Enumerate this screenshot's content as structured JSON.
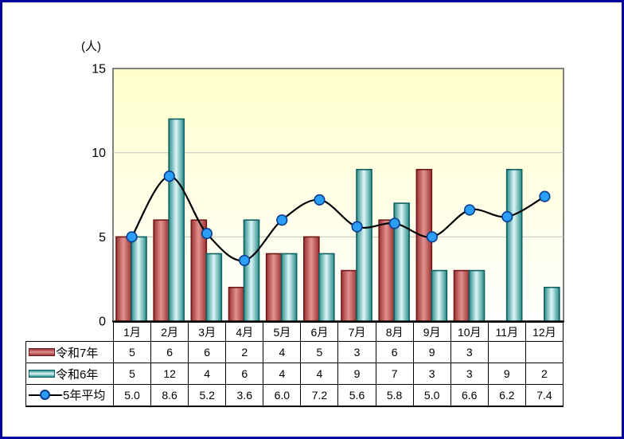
{
  "window": {
    "background": "#FFFFFF",
    "border_color": "#0000A0"
  },
  "chart_data": {
    "type": "bar+line",
    "title": "",
    "unit_label": "(人)",
    "categories": [
      "1月",
      "2月",
      "3月",
      "4月",
      "5月",
      "6月",
      "7月",
      "8月",
      "9月",
      "10月",
      "11月",
      "12月"
    ],
    "series": [
      {
        "name": "令和7年",
        "type": "bar",
        "values": [
          5,
          6,
          6,
          2,
          4,
          5,
          3,
          6,
          9,
          3,
          null,
          null
        ]
      },
      {
        "name": "令和6年",
        "type": "bar",
        "values": [
          5,
          12,
          4,
          6,
          4,
          4,
          9,
          7,
          3,
          3,
          9,
          2
        ]
      },
      {
        "name": "5年平均",
        "type": "line",
        "decimals": 1,
        "values": [
          5.0,
          8.6,
          5.2,
          3.6,
          6.0,
          7.2,
          5.6,
          5.8,
          5.0,
          6.6,
          6.2,
          7.4
        ]
      }
    ],
    "ylim": [
      0,
      15
    ],
    "yticks": [
      0,
      5,
      10,
      15
    ],
    "grid": true,
    "legend_position": "data-table-left",
    "data_table_shown": true
  },
  "colors": {
    "window_border": "#0000A0",
    "plot_bg_top": "#FFFFCC",
    "plot_bg_bottom": "#FFFFFF",
    "plot_border": "#7F7F7F",
    "gridline": "#C6C6C6",
    "axis": "#000000",
    "bar_red_edge": "#9A3232",
    "bar_red_mid": "#E39191",
    "bar_red_stroke": "#701818",
    "bar_teal_edge": "#2A8C8C",
    "bar_teal_mid": "#DDF6F6",
    "bar_teal_stroke": "#0E6161",
    "line_color": "#000000",
    "marker_fill": "#2B9FF8",
    "marker_stroke": "#0A3C8E"
  }
}
